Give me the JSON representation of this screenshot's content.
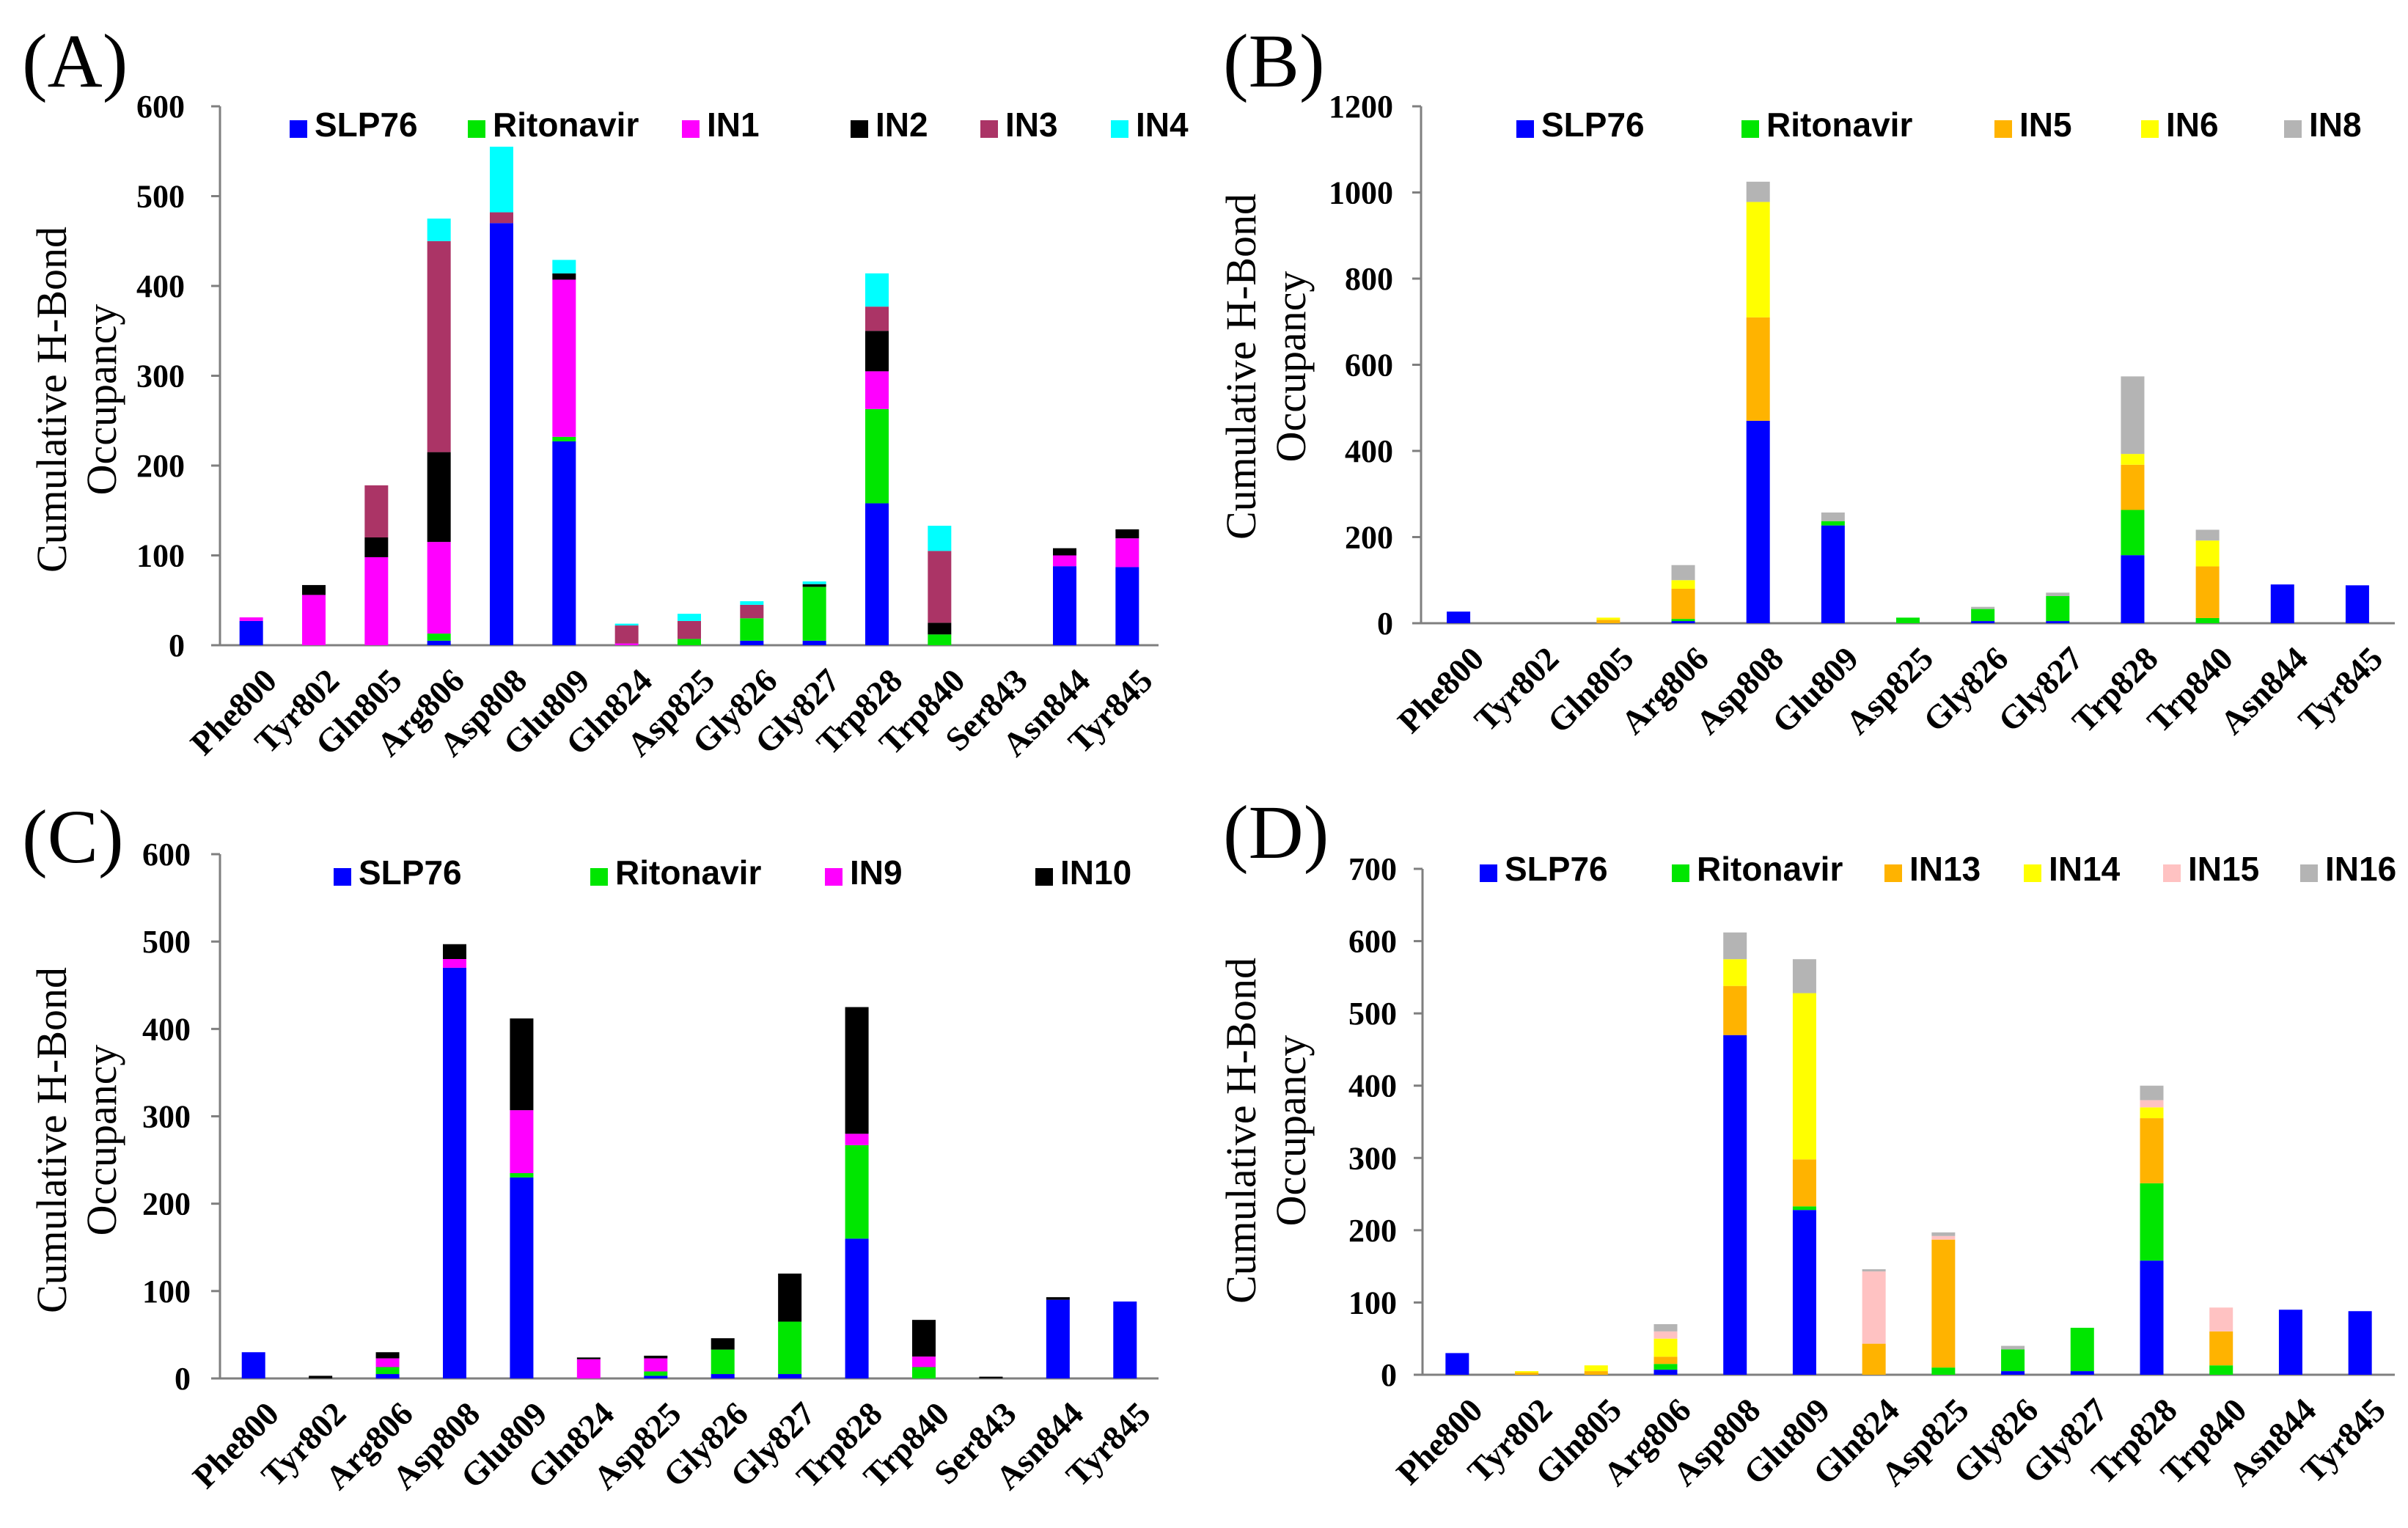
{
  "colors": {
    "SLP76": "#0000ff",
    "Ritonavir": "#00e600",
    "IN1": "#ff00ff",
    "IN2": "#000000",
    "IN3": "#ab3466",
    "IN4": "#00ffff",
    "IN5": "#ffb300",
    "IN6": "#ffff00",
    "IN8": "#b4b4b4",
    "IN9": "#ff00ff",
    "IN10": "#000000",
    "IN13": "#ffb300",
    "IN14": "#ffff00",
    "IN15": "#ffc2c2",
    "IN16": "#b4b4b4"
  },
  "chart_data": [
    {
      "panel": "(A)",
      "type": "bar",
      "stacked": true,
      "ylabel_line1": "Cumulative  H-Bond",
      "ylabel_line2": "Occupancy",
      "ylim": [
        0,
        600
      ],
      "yticks": [
        "0",
        "100",
        "200",
        "300",
        "400",
        "500",
        "600"
      ],
      "categories": [
        "Phe800",
        "Tyr802",
        "Gln805",
        "Arg806",
        "Asp808",
        "Glu809",
        "Gln824",
        "Asp825",
        "Gly826",
        "Gly827",
        "Trp828",
        "Trp840",
        "Ser843",
        "Asn844",
        "Tyr845"
      ],
      "series": [
        {
          "name": "SLP76",
          "values": [
            27,
            0,
            0,
            5,
            470,
            227,
            0,
            0,
            5,
            5,
            158,
            0,
            0,
            88,
            87
          ]
        },
        {
          "name": "Ritonavir",
          "values": [
            0,
            0,
            0,
            8,
            0,
            5,
            0,
            7,
            25,
            60,
            105,
            12,
            0,
            0,
            0
          ]
        },
        {
          "name": "IN1",
          "values": [
            4,
            56,
            98,
            102,
            0,
            175,
            2,
            0,
            0,
            0,
            42,
            0,
            0,
            12,
            32
          ]
        },
        {
          "name": "IN2",
          "values": [
            0,
            11,
            22,
            100,
            0,
            7,
            0,
            0,
            0,
            3,
            45,
            13,
            0,
            8,
            10
          ]
        },
        {
          "name": "IN3",
          "values": [
            0,
            0,
            58,
            235,
            12,
            0,
            20,
            20,
            15,
            0,
            27,
            80,
            0,
            0,
            0
          ]
        },
        {
          "name": "IN4",
          "values": [
            0,
            0,
            0,
            25,
            73,
            15,
            2,
            8,
            4,
            3,
            37,
            28,
            0,
            0,
            0
          ]
        }
      ]
    },
    {
      "panel": "(B)",
      "type": "bar",
      "stacked": true,
      "ylabel_line1": "Cumulative  H-Bond",
      "ylabel_line2": "Occupancy",
      "ylim": [
        0,
        1200
      ],
      "yticks": [
        "0",
        "200",
        "400",
        "600",
        "800",
        "1000",
        "1200"
      ],
      "categories": [
        "Phe800",
        "Tyr802",
        "Gln805",
        "Arg806",
        "Asp808",
        "Glu809",
        "Asp825",
        "Gly826",
        "Gly827",
        "Trp828",
        "Trp840",
        "Asn844",
        "Tyr845"
      ],
      "series": [
        {
          "name": "SLP76",
          "values": [
            27,
            0,
            0,
            5,
            470,
            227,
            0,
            5,
            5,
            158,
            0,
            90,
            88
          ]
        },
        {
          "name": "Ritonavir",
          "values": [
            0,
            0,
            0,
            5,
            0,
            10,
            13,
            28,
            58,
            105,
            12,
            0,
            0
          ]
        },
        {
          "name": "IN5",
          "values": [
            0,
            0,
            8,
            70,
            240,
            0,
            0,
            0,
            0,
            105,
            120,
            0,
            0
          ]
        },
        {
          "name": "IN6",
          "values": [
            0,
            0,
            5,
            20,
            268,
            0,
            0,
            0,
            0,
            25,
            60,
            0,
            0
          ]
        },
        {
          "name": "IN8",
          "values": [
            0,
            0,
            0,
            35,
            47,
            20,
            0,
            5,
            8,
            180,
            25,
            0,
            0
          ]
        }
      ]
    },
    {
      "panel": "(C)",
      "type": "bar",
      "stacked": true,
      "ylabel_line1": "Cumulative  H-Bond",
      "ylabel_line2": "Occupancy",
      "ylim": [
        0,
        600
      ],
      "yticks": [
        "0",
        "100",
        "200",
        "300",
        "400",
        "500",
        "600"
      ],
      "categories": [
        "Phe800",
        "Tyr802",
        "Arg806",
        "Asp808",
        "Glu809",
        "Gln824",
        "Asp825",
        "Gly826",
        "Gly827",
        "Trp828",
        "Trp840",
        "Ser843",
        "Asn844",
        "Tyr845"
      ],
      "series": [
        {
          "name": "SLP76",
          "values": [
            30,
            0,
            5,
            470,
            230,
            0,
            3,
            5,
            5,
            160,
            0,
            0,
            90,
            88
          ]
        },
        {
          "name": "Ritonavir",
          "values": [
            0,
            0,
            8,
            0,
            5,
            0,
            5,
            28,
            60,
            107,
            13,
            0,
            0,
            0
          ]
        },
        {
          "name": "IN9",
          "values": [
            0,
            0,
            10,
            10,
            72,
            22,
            15,
            0,
            0,
            13,
            12,
            0,
            0,
            0
          ]
        },
        {
          "name": "IN10",
          "values": [
            0,
            3,
            7,
            17,
            105,
            2,
            3,
            13,
            55,
            145,
            42,
            2,
            3,
            0
          ]
        }
      ]
    },
    {
      "panel": "(D)",
      "type": "bar",
      "stacked": true,
      "ylabel_line1": "Cumulative  H-Bond",
      "ylabel_line2": "Occupancy",
      "ylim": [
        0,
        700
      ],
      "yticks": [
        "0",
        "100",
        "200",
        "300",
        "400",
        "500",
        "600",
        "700"
      ],
      "categories": [
        "Phe800",
        "Tyr802",
        "Gln805",
        "Arg806",
        "Asp808",
        "Glu809",
        "Gln824",
        "Asp825",
        "Gly826",
        "Gly827",
        "Trp828",
        "Trp840",
        "Asn844",
        "Tyr845"
      ],
      "series": [
        {
          "name": "SLP76",
          "values": [
            30,
            0,
            0,
            7,
            470,
            228,
            0,
            0,
            5,
            5,
            158,
            0,
            90,
            88
          ]
        },
        {
          "name": "Ritonavir",
          "values": [
            0,
            0,
            0,
            8,
            0,
            5,
            0,
            10,
            30,
            60,
            107,
            13,
            0,
            0
          ]
        },
        {
          "name": "IN13",
          "values": [
            0,
            3,
            5,
            10,
            68,
            65,
            43,
            177,
            0,
            0,
            90,
            47,
            0,
            0
          ]
        },
        {
          "name": "IN14",
          "values": [
            0,
            2,
            8,
            25,
            37,
            230,
            0,
            0,
            0,
            0,
            15,
            0,
            0,
            0
          ]
        },
        {
          "name": "IN15",
          "values": [
            0,
            0,
            0,
            10,
            0,
            0,
            100,
            5,
            0,
            0,
            10,
            33,
            0,
            0
          ]
        },
        {
          "name": "IN16",
          "values": [
            0,
            0,
            0,
            10,
            37,
            47,
            3,
            5,
            5,
            0,
            20,
            0,
            0,
            0
          ]
        }
      ]
    }
  ]
}
